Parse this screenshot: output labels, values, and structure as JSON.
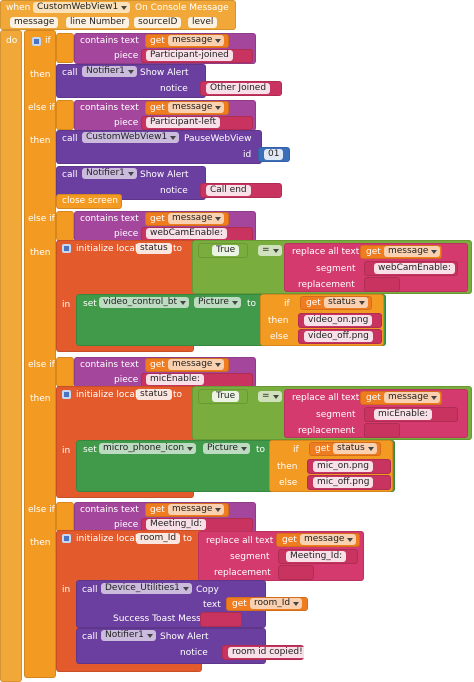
{
  "event": {
    "when": "when",
    "component": "CustomWebView1",
    "name": "On Console Message",
    "parameters": [
      "message",
      "line Number",
      "sourceID",
      "level"
    ],
    "do": "do"
  },
  "keywords": {
    "if": "if",
    "then": "then",
    "else_if": "else if",
    "else": "else",
    "in": "in",
    "contains": "contains text",
    "get": "get",
    "piece": "piece",
    "call": "call",
    "set": "set",
    "to": "to",
    "init": "initialize local",
    "replace": "replace all text",
    "segment": "segment",
    "replacement": "replacement",
    "notice": "notice",
    "eq": "="
  },
  "variable": "message",
  "notifier": {
    "component": "Notifier1",
    "method": "Show Alert"
  },
  "branches": [
    {
      "piece": "Participant-joined",
      "notice": "Other Joined"
    },
    {
      "piece": "Participant-left",
      "pause": {
        "component": "CustomWebView1",
        "method": "PauseWebView",
        "arg": "id",
        "value": "01"
      },
      "notice": "Call end",
      "close": "close screen"
    },
    {
      "piece": "webCamEnable:",
      "local": "status",
      "bool": "True",
      "segment": "webCamEnable:",
      "component": "video_control_bt",
      "property": "Picture",
      "on": "video_on.png",
      "off": "video_off.png"
    },
    {
      "piece": "micEnable:",
      "local": "status",
      "bool": "True",
      "segment": "micEnable:",
      "component": "micro_phone_icon",
      "property": "Picture",
      "on": "mic_on.png",
      "off": "mic_off.png"
    },
    {
      "piece": "Meeting_Id:",
      "local": "room_Id",
      "segment": "Meeting_Id:",
      "copy": {
        "component": "Device_Utilities1",
        "method": "Copy",
        "arg": "text",
        "message_label": "Success Toast Message"
      },
      "notice": "room id copied!"
    }
  ]
}
